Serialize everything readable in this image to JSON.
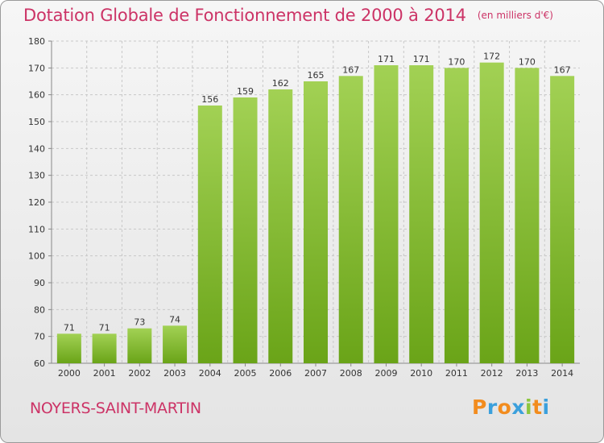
{
  "chart_data": {
    "type": "bar",
    "title": "Dotation Globale de Fonctionnement de 2000 à 2014",
    "subtitle": "(en milliers d'€)",
    "categories": [
      "2000",
      "2001",
      "2002",
      "2003",
      "2004",
      "2005",
      "2006",
      "2007",
      "2008",
      "2009",
      "2010",
      "2011",
      "2012",
      "2013",
      "2014"
    ],
    "values": [
      71,
      71,
      73,
      74,
      156,
      159,
      162,
      165,
      167,
      171,
      171,
      170,
      172,
      170,
      167
    ],
    "yticks": [
      60,
      70,
      80,
      90,
      100,
      110,
      120,
      130,
      140,
      150,
      160,
      170,
      180
    ],
    "ylim": [
      60,
      180
    ],
    "xlabel": "",
    "ylabel": "",
    "grid": true,
    "legend": "none",
    "colors": {
      "bar_top": "#a2d154",
      "bar_bottom": "#6aa418",
      "grid": "#c8c8c8",
      "accent": "#cc3366"
    }
  },
  "footer": {
    "commune": "NOYERS-SAINT-MARTIN"
  },
  "logo": {
    "letters": [
      "P",
      "r",
      "o",
      "x",
      "i",
      "t",
      "i"
    ],
    "colors": [
      "#f28c1e",
      "#3ba0dc",
      "#f28c1e",
      "#3ba0dc",
      "#8cc63f",
      "#f28c1e",
      "#3ba0dc"
    ]
  }
}
